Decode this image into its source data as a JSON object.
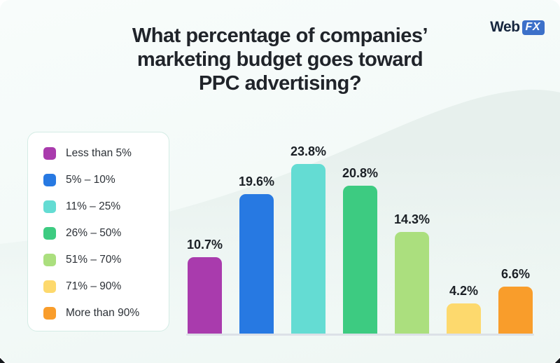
{
  "header": {
    "title_lines": [
      "What percentage of companies’",
      "marketing budget goes toward",
      "PPC advertising?"
    ],
    "logo": {
      "part1": "Web",
      "part2": "FX"
    }
  },
  "legend": {
    "items": [
      {
        "label": "Less than 5%",
        "color": "#a93bad"
      },
      {
        "label": "5% – 10%",
        "color": "#2779e2"
      },
      {
        "label": "11% – 25%",
        "color": "#64dcd3"
      },
      {
        "label": "26% – 50%",
        "color": "#3dcb81"
      },
      {
        "label": "51% – 70%",
        "color": "#abdf7e"
      },
      {
        "label": "71% – 90%",
        "color": "#fdd96d"
      },
      {
        "label": "More than 90%",
        "color": "#f99d2b"
      }
    ]
  },
  "chart_data": {
    "type": "bar",
    "title": "What percentage of companies’ marketing budget goes toward PPC advertising?",
    "categories": [
      "Less than 5%",
      "5% – 10%",
      "11% – 25%",
      "26% – 50%",
      "51% – 70%",
      "71% – 90%",
      "More than 90%"
    ],
    "values": [
      10.7,
      19.6,
      23.8,
      20.8,
      14.3,
      4.2,
      6.6
    ],
    "labels": [
      "10.7%",
      "19.6%",
      "23.8%",
      "20.8%",
      "14.3%",
      "4.2%",
      "6.6%"
    ],
    "colors": [
      "#a93bad",
      "#2779e2",
      "#64dcd3",
      "#3dcb81",
      "#abdf7e",
      "#fdd96d",
      "#f99d2b"
    ],
    "xlabel": "",
    "ylabel": "",
    "ylim": [
      0,
      25
    ],
    "grid": false,
    "axes_shown": false,
    "legend_position": "left",
    "data_labels": "above-bars"
  },
  "colors": {
    "card_bg": "#f3faf8",
    "hill": "#e7f0ed",
    "baseline": "#dce1e7",
    "text": "#20242a",
    "logo_badge": "#3c70c9",
    "legend_border": "#d4ece5"
  }
}
